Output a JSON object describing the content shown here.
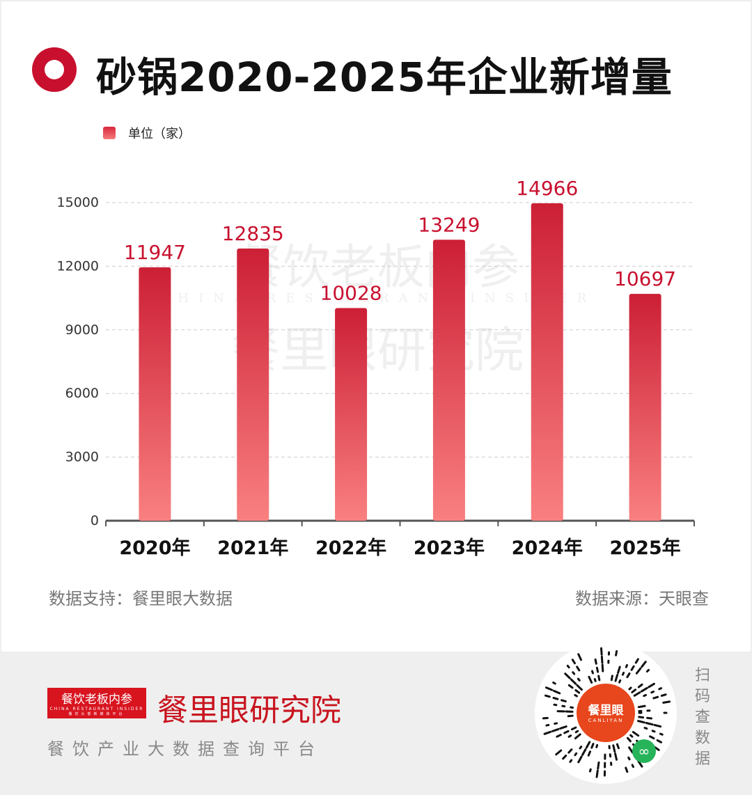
{
  "header": {
    "title": "砂锅2020-2025年企业新增量",
    "legend": "单位（家）"
  },
  "chart_data": {
    "type": "bar",
    "title": "砂锅2020-2025年企业新增量",
    "categories": [
      "2020年",
      "2021年",
      "2022年",
      "2023年",
      "2024年",
      "2025年"
    ],
    "values": [
      11947,
      12835,
      10028,
      13249,
      14966,
      10697
    ],
    "ylabel": "单位（家）",
    "ylim": [
      0,
      15000
    ],
    "yticks": [
      0,
      3000,
      6000,
      9000,
      12000,
      15000
    ],
    "grid": true,
    "colors": {
      "bar_top": "#cc1f36",
      "bar_bottom": "#f98080",
      "label": "#c8102e"
    }
  },
  "watermark": {
    "line1": "餐饮老板内参",
    "line2": "CHINA RESTAURANT INSIDER",
    "line3": "餐里眼研究院"
  },
  "footer": {
    "support": "数据支持：餐里眼大数据",
    "source": "数据来源：天眼查"
  },
  "bottom": {
    "logo_main": "餐饮老板内参",
    "logo_en": "CHINA RESTAURANT INSIDER",
    "logo_sub": "餐饮头部新媒体平台",
    "brand": "餐里眼研究院",
    "slogan": "餐饮产业大数据查询平台",
    "qr_title": "餐里眼",
    "qr_sub": "CANLIYAN",
    "scan": [
      "扫",
      "码",
      "查",
      "数",
      "据"
    ]
  }
}
